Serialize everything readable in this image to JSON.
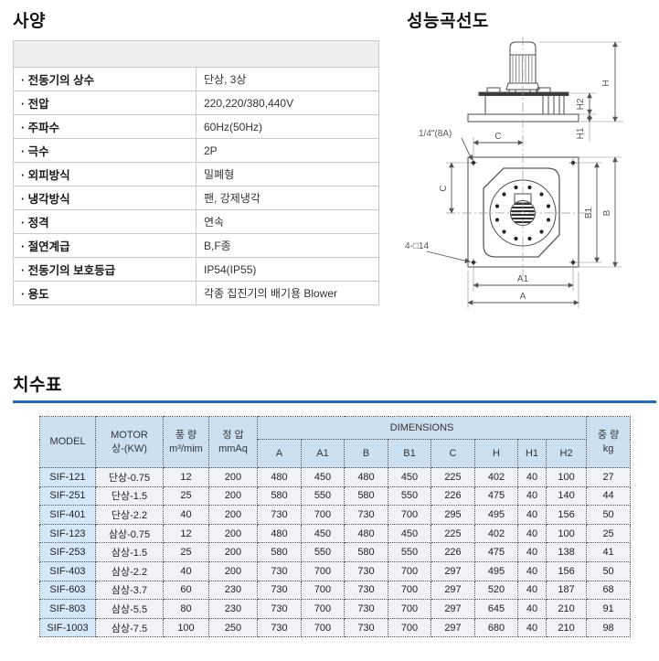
{
  "colors": {
    "rule_blue": "#1f6db6",
    "table_header_bg": "#cbe0f1",
    "model_col_bg": "#d3e8f8",
    "cell_bg": "#f1f2f8",
    "spec_header_bg": "#efefef"
  },
  "titles": {
    "spec": "사양",
    "diagram": "성능곡선도",
    "dims": "치수표"
  },
  "spec_table": {
    "rows": [
      {
        "label": "· 전동기의 상수",
        "value": "단상, 3상"
      },
      {
        "label": "· 전압",
        "value": "220,220/380,440V"
      },
      {
        "label": "· 주파수",
        "value": "60Hz(50Hz)"
      },
      {
        "label": "· 극수",
        "value": "2P"
      },
      {
        "label": "· 외피방식",
        "value": "밀폐형"
      },
      {
        "label": "· 냉각방식",
        "value": "팬, 강제냉각"
      },
      {
        "label": "· 정격",
        "value": "연속"
      },
      {
        "label": "· 절연계급",
        "value": "B,F종"
      },
      {
        "label": "· 전동기의 보호등급",
        "value": "IP54(IP55)"
      },
      {
        "label": "· 용도",
        "value": "각종 집진기의 배기용 Blower"
      }
    ]
  },
  "diagram": {
    "labels": {
      "h": "H",
      "h2": "H2",
      "h1": "H1",
      "c": "C",
      "b1": "B1",
      "b": "B",
      "a1": "A1",
      "a": "A",
      "pipe": "1/4\"(8A)",
      "holes": "4-□14"
    }
  },
  "dim_table": {
    "headers": {
      "model": "MODEL",
      "motor_line1": "MOTOR",
      "motor_line2": "상-(KW)",
      "flow_line1": "풍 량",
      "flow_line2": "m³/mim",
      "pressure_line1": "정 압",
      "pressure_line2": "mmAq",
      "dimensions": "DIMENSIONS",
      "dim_cols": [
        "A",
        "A1",
        "B",
        "B1",
        "C",
        "H",
        "H1",
        "H2"
      ],
      "weight_line1": "중 량",
      "weight_line2": "kg"
    },
    "rows": [
      [
        "SIF-121",
        "단상-0.75",
        "12",
        "200",
        "480",
        "450",
        "480",
        "450",
        "225",
        "402",
        "40",
        "100",
        "27"
      ],
      [
        "SIF-251",
        "단상-1.5",
        "25",
        "200",
        "580",
        "550",
        "580",
        "550",
        "226",
        "475",
        "40",
        "140",
        "44"
      ],
      [
        "SIF-401",
        "단상-2.2",
        "40",
        "200",
        "730",
        "700",
        "730",
        "700",
        "295",
        "495",
        "40",
        "156",
        "50"
      ],
      [
        "SIF-123",
        "삼상-0.75",
        "12",
        "200",
        "480",
        "450",
        "480",
        "450",
        "225",
        "402",
        "40",
        "100",
        "25"
      ],
      [
        "SIF-253",
        "삼상-1.5",
        "25",
        "200",
        "580",
        "550",
        "580",
        "550",
        "226",
        "475",
        "40",
        "138",
        "41"
      ],
      [
        "SIF-403",
        "삼상-2.2",
        "40",
        "200",
        "730",
        "700",
        "730",
        "700",
        "297",
        "495",
        "40",
        "156",
        "50"
      ],
      [
        "SIF-603",
        "삼상-3.7",
        "60",
        "230",
        "730",
        "700",
        "730",
        "700",
        "297",
        "520",
        "40",
        "187",
        "68"
      ],
      [
        "SIF-803",
        "삼상-5.5",
        "80",
        "230",
        "730",
        "700",
        "730",
        "700",
        "297",
        "645",
        "40",
        "210",
        "91"
      ],
      [
        "SIF-1003",
        "삼상-7.5",
        "100",
        "250",
        "730",
        "700",
        "730",
        "700",
        "297",
        "680",
        "40",
        "210",
        "98"
      ]
    ]
  }
}
